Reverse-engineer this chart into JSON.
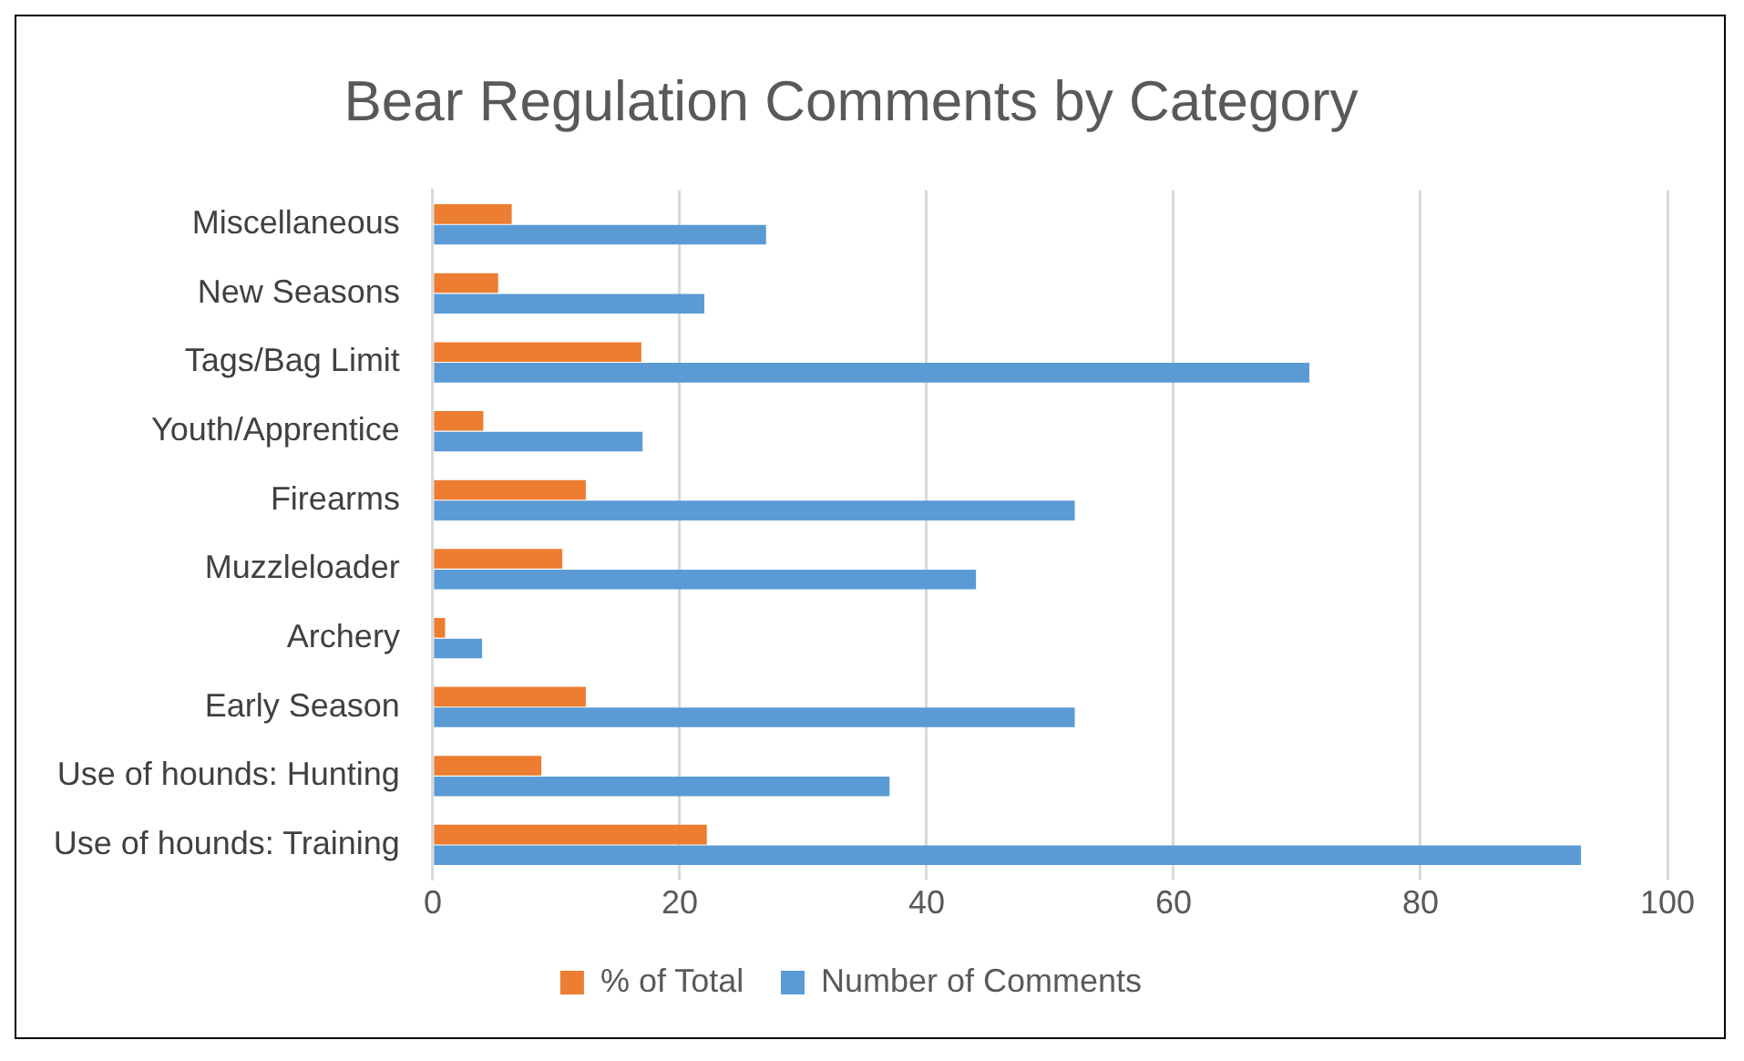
{
  "chart_data": {
    "type": "bar",
    "orientation": "horizontal",
    "title": "Bear Regulation Comments by Category",
    "categories": [
      "Miscellaneous",
      "New Seasons",
      "Tags/Bag Limit",
      "Youth/Apprentice",
      "Firearms",
      "Muzzleloader",
      "Archery",
      "Early Season",
      "Use of hounds: Hunting",
      "Use of hounds: Training"
    ],
    "series": [
      {
        "name": "% of Total",
        "color": "#ed7d31",
        "values": [
          6.4,
          5.3,
          16.9,
          4.1,
          12.4,
          10.5,
          1.0,
          12.4,
          8.8,
          22.2
        ]
      },
      {
        "name": "Number of Comments",
        "color": "#5b9bd5",
        "values": [
          27,
          22,
          71,
          17,
          52,
          44,
          4,
          52,
          37,
          93
        ]
      }
    ],
    "xlim": [
      0,
      100
    ],
    "xticks": [
      0,
      20,
      40,
      60,
      80,
      100
    ],
    "grid": "x",
    "legend": "bottom"
  }
}
